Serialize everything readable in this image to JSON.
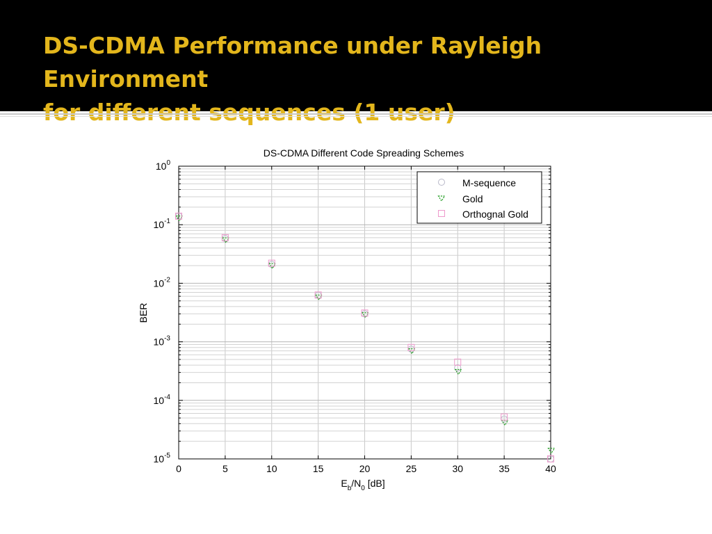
{
  "slide": {
    "title_line1": "DS-CDMA Performance under Rayleigh Environment",
    "title_line2": "for different sequences (1 user)"
  },
  "colors": {
    "header_bg": "#000000",
    "title": "#e3b61c",
    "m_sequence": "#b8b8c8",
    "gold": "#1c9a1c",
    "orthognal_gold": "#ee99cc"
  },
  "chart_data": {
    "type": "scatter",
    "title": "DS-CDMA Different Code Spreading Schemes",
    "xlabel_main": "E",
    "xlabel_sub1": "b",
    "xlabel_mid": "/N",
    "xlabel_sub2": "0",
    "xlabel_tail": " [dB]",
    "ylabel": "BER",
    "xlim": [
      0,
      40
    ],
    "ylim": [
      1e-05,
      1
    ],
    "yscale": "log",
    "grid": true,
    "legend_position": "top-right",
    "x_ticks": [
      "0",
      "5",
      "10",
      "15",
      "20",
      "25",
      "30",
      "35",
      "40"
    ],
    "y_ticks": [
      {
        "base": "10",
        "exp": "0"
      },
      {
        "base": "10",
        "exp": "-1"
      },
      {
        "base": "10",
        "exp": "-2"
      },
      {
        "base": "10",
        "exp": "-3"
      },
      {
        "base": "10",
        "exp": "-4"
      },
      {
        "base": "10",
        "exp": "-5"
      }
    ],
    "x": [
      0,
      5,
      10,
      15,
      20,
      25,
      30,
      35,
      40
    ],
    "series": [
      {
        "name": "M-sequence",
        "marker": "circle",
        "values": [
          0.14,
          0.058,
          0.021,
          0.0062,
          0.003,
          0.00075,
          0.00036,
          4.8e-05,
          1e-05
        ]
      },
      {
        "name": "Gold",
        "marker": "triangle",
        "values": [
          0.13,
          0.055,
          0.02,
          0.0058,
          0.0029,
          0.0007,
          0.00031,
          4.2e-05,
          1.4e-05
        ]
      },
      {
        "name": "Orthognal Gold",
        "marker": "square",
        "values": [
          0.14,
          0.06,
          0.022,
          0.0063,
          0.0031,
          0.0008,
          0.00045,
          5.2e-05,
          1e-05
        ]
      }
    ]
  }
}
